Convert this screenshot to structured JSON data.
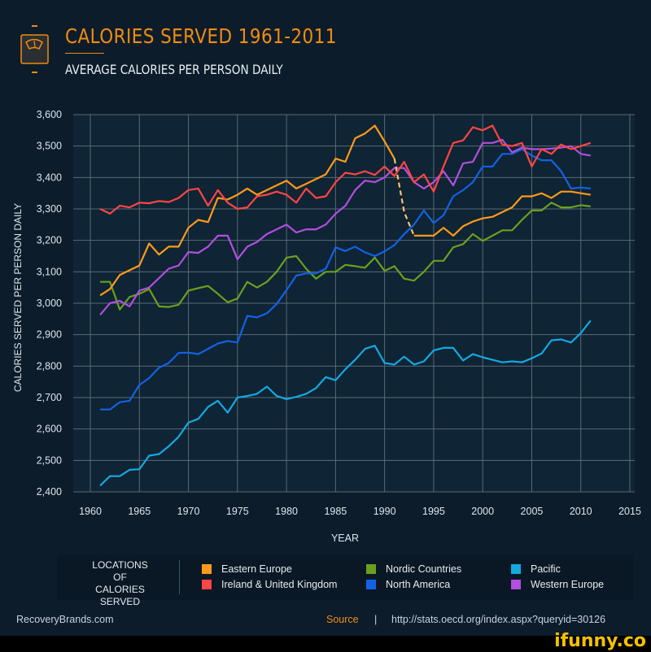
{
  "header": {
    "title": "CALORIES SERVED 1961-2011",
    "subtitle": "AVERAGE CALORIES PER PERSON DAILY",
    "icon": "scale-icon"
  },
  "chart_data": {
    "type": "line",
    "title": "CALORIES SERVED 1961-2011",
    "subtitle": "AVERAGE CALORIES PER PERSON DAILY",
    "xlabel": "YEAR",
    "ylabel": "CALORIES SERVED PER PERSON DAILY",
    "xlim": [
      1960,
      2015
    ],
    "ylim": [
      2400,
      3600
    ],
    "xticks": [
      1960,
      1965,
      1970,
      1975,
      1980,
      1985,
      1990,
      1995,
      2000,
      2005,
      2010,
      2015
    ],
    "yticks": [
      "2,400",
      "2,500",
      "2,600",
      "2,700",
      "2,800",
      "2,900",
      "3,000",
      "3,100",
      "3,200",
      "3,300",
      "3,400",
      "3,500",
      "3,600"
    ],
    "grid": true,
    "legend_placement": "bottom",
    "legend_title": "LOCATIONS OF CALORIES SERVED",
    "x_start": 1961,
    "series": [
      {
        "name": "Eastern Europe",
        "color": "#ff9a1a",
        "dashed_years": [
          1991,
          1993
        ],
        "values": [
          3025,
          3045,
          3090,
          3105,
          3120,
          3190,
          3155,
          3180,
          3180,
          3240,
          3265,
          3258,
          3335,
          3330,
          3345,
          3365,
          3345,
          3360,
          3375,
          3390,
          3365,
          3380,
          3395,
          3410,
          3460,
          3450,
          3525,
          3540,
          3565,
          3515,
          3460,
          3290,
          3215,
          3215,
          3215,
          3240,
          3215,
          3245,
          3260,
          3270,
          3275,
          3290,
          3305,
          3340,
          3340,
          3350,
          3335,
          3355,
          3355,
          3350,
          3345
        ]
      },
      {
        "name": "Ireland & United Kingdom",
        "color": "#ff4545",
        "values": [
          3300,
          3285,
          3310,
          3305,
          3320,
          3318,
          3325,
          3322,
          3335,
          3360,
          3365,
          3310,
          3360,
          3320,
          3300,
          3305,
          3340,
          3345,
          3355,
          3345,
          3320,
          3365,
          3335,
          3340,
          3385,
          3415,
          3410,
          3420,
          3408,
          3435,
          3405,
          3450,
          3385,
          3410,
          3355,
          3435,
          3510,
          3518,
          3560,
          3550,
          3565,
          3505,
          3500,
          3510,
          3435,
          3490,
          3475,
          3505,
          3490,
          3500,
          3510
        ]
      },
      {
        "name": "Nordic Countries",
        "color": "#6aa01e",
        "values": [
          3068,
          3068,
          2980,
          3020,
          3030,
          3045,
          2990,
          2988,
          2995,
          3040,
          3048,
          3055,
          3030,
          3003,
          3015,
          3068,
          3050,
          3068,
          3100,
          3145,
          3150,
          3110,
          3078,
          3100,
          3100,
          3122,
          3118,
          3113,
          3145,
          3103,
          3118,
          3078,
          3072,
          3100,
          3135,
          3135,
          3178,
          3188,
          3220,
          3198,
          3215,
          3232,
          3232,
          3265,
          3295,
          3295,
          3320,
          3305,
          3305,
          3312,
          3308
        ]
      },
      {
        "name": "North America",
        "color": "#1262e6",
        "values": [
          2662,
          2662,
          2685,
          2690,
          2740,
          2762,
          2795,
          2810,
          2842,
          2843,
          2838,
          2855,
          2872,
          2880,
          2875,
          2960,
          2955,
          2968,
          2998,
          3042,
          3088,
          3095,
          3095,
          3110,
          3178,
          3166,
          3180,
          3162,
          3150,
          3165,
          3185,
          3220,
          3250,
          3295,
          3255,
          3280,
          3340,
          3360,
          3385,
          3435,
          3435,
          3475,
          3475,
          3490,
          3470,
          3455,
          3455,
          3420,
          3365,
          3368,
          3365
        ]
      },
      {
        "name": "Pacific",
        "color": "#14a9e2",
        "values": [
          2420,
          2450,
          2450,
          2470,
          2472,
          2515,
          2520,
          2545,
          2575,
          2620,
          2632,
          2670,
          2690,
          2652,
          2700,
          2705,
          2712,
          2735,
          2705,
          2695,
          2702,
          2712,
          2730,
          2765,
          2755,
          2790,
          2820,
          2855,
          2865,
          2810,
          2805,
          2830,
          2805,
          2815,
          2850,
          2858,
          2858,
          2818,
          2838,
          2828,
          2820,
          2812,
          2815,
          2812,
          2825,
          2840,
          2882,
          2885,
          2875,
          2905,
          2945
        ]
      },
      {
        "name": "Western Europe",
        "color": "#b24ee0",
        "values": [
          2963,
          3000,
          3008,
          2990,
          3040,
          3050,
          3080,
          3110,
          3120,
          3163,
          3160,
          3180,
          3215,
          3215,
          3140,
          3180,
          3195,
          3220,
          3235,
          3250,
          3225,
          3235,
          3235,
          3250,
          3285,
          3310,
          3360,
          3390,
          3385,
          3400,
          3430,
          3430,
          3385,
          3365,
          3385,
          3420,
          3375,
          3445,
          3450,
          3510,
          3510,
          3520,
          3480,
          3495,
          3490,
          3490,
          3492,
          3495,
          3500,
          3475,
          3470
        ]
      }
    ]
  },
  "legend": {
    "title": "LOCATIONS OF CALORIES SERVED",
    "items": [
      "Eastern Europe",
      "Ireland & United Kingdom",
      "Nordic Countries",
      "North America",
      "Pacific",
      "Western Europe"
    ]
  },
  "footer": {
    "brand": "RecoveryBrands.com",
    "source_label": "Source",
    "separator": "|",
    "source_url": "http://stats.oecd.org/index.aspx?queryid=30126"
  },
  "watermark": "ifunny.co"
}
